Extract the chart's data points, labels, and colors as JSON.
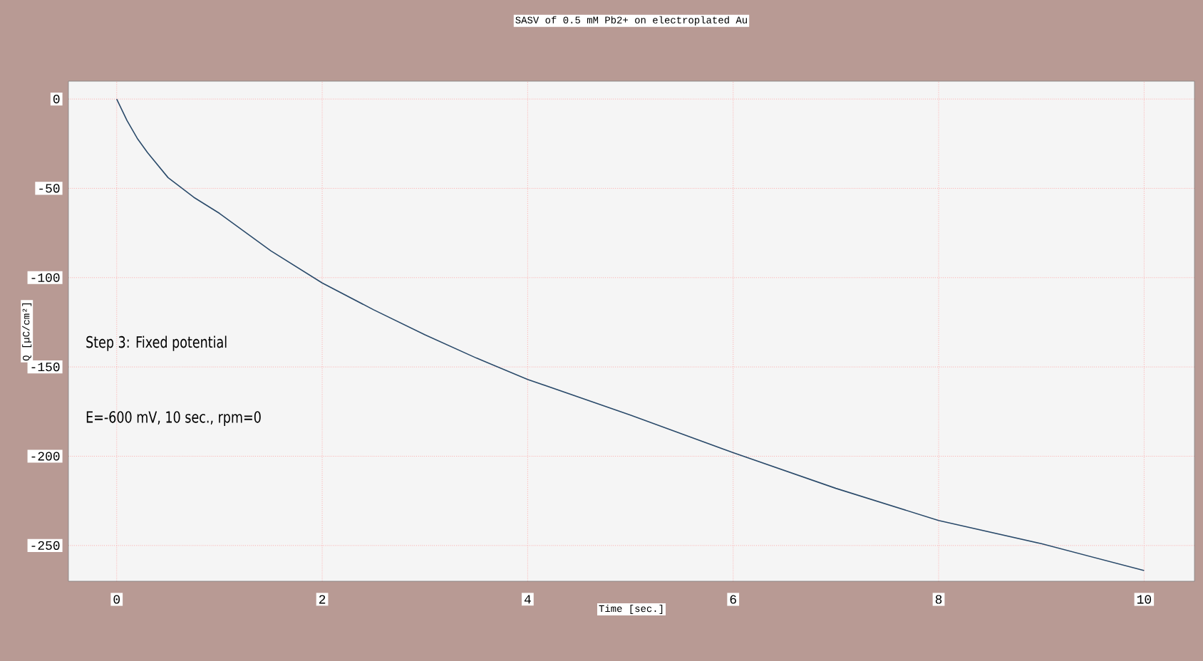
{
  "chart_data": {
    "type": "line",
    "title": "SASV of 0.5 mM Pb2+ on electroplated Au",
    "xlabel": "Time [sec.]",
    "ylabel": "Q [µC/cm²]",
    "annotations": [
      "Step 3: Fixed potential",
      "E=-600 mV, 10 sec., rpm=0"
    ],
    "x": [
      0,
      0.1,
      0.2,
      0.3,
      0.5,
      0.75,
      1,
      1.5,
      2,
      2.5,
      3,
      3.5,
      4,
      5,
      6,
      7,
      8,
      9,
      10
    ],
    "series": [
      {
        "color": "#2a4a6a",
        "values": [
          0,
          -12,
          -22,
          -30,
          -44,
          -55,
          -64,
          -85,
          -103,
          -118,
          -132,
          -145,
          -157,
          -177,
          -198,
          -218,
          -236,
          -249,
          -264
        ]
      }
    ],
    "xlim": [
      -0.47,
      10.49
    ],
    "ylim": [
      -270,
      10
    ],
    "xticks": [
      0,
      2,
      4,
      6,
      8,
      10
    ],
    "yticks": [
      -250,
      -200,
      -150,
      -100,
      -50,
      0
    ],
    "grid": true,
    "line_style": "solid",
    "marker": "none"
  }
}
